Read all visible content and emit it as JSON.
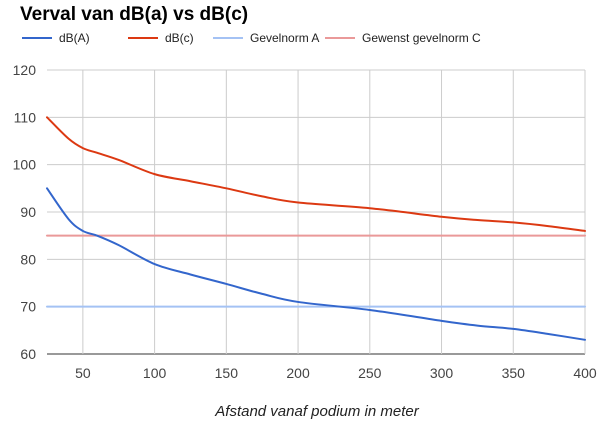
{
  "chart_data": {
    "type": "line",
    "title": "Verval van dB(a) vs dB(c)",
    "xlabel": "Afstand vanaf podium in meter",
    "ylabel": "",
    "xlim": [
      25,
      400
    ],
    "ylim": [
      60,
      120
    ],
    "x_ticks": [
      50,
      100,
      150,
      200,
      250,
      300,
      350,
      400
    ],
    "y_ticks": [
      60,
      70,
      80,
      90,
      100,
      110,
      120
    ],
    "grid": true,
    "legend_position": "top-left",
    "series": [
      {
        "name": "dB(A)",
        "color": "#3366cc",
        "x": [
          25,
          40,
          50,
          60,
          75,
          100,
          125,
          150,
          175,
          200,
          250,
          300,
          325,
          350,
          375,
          400
        ],
        "values": [
          95,
          88.5,
          86,
          85,
          83,
          79,
          76.8,
          74.8,
          72.7,
          71,
          69.3,
          67,
          66,
          65.3,
          64.2,
          63
        ]
      },
      {
        "name": "dB(c)",
        "color": "#dc3912",
        "x": [
          25,
          40,
          50,
          60,
          75,
          100,
          125,
          150,
          175,
          200,
          250,
          300,
          325,
          350,
          375,
          400
        ],
        "values": [
          110,
          105.5,
          103.5,
          102.5,
          101,
          98,
          96.5,
          95,
          93.3,
          92,
          90.8,
          89,
          88.3,
          87.8,
          87,
          86
        ]
      },
      {
        "name": "Gevelnorm A",
        "color": "#a4c2f4",
        "x": [
          25,
          400
        ],
        "values": [
          70,
          70
        ]
      },
      {
        "name": "Gewenst gevelnorm C",
        "color": "#ea9999",
        "x": [
          25,
          400
        ],
        "values": [
          85,
          85
        ]
      }
    ]
  }
}
